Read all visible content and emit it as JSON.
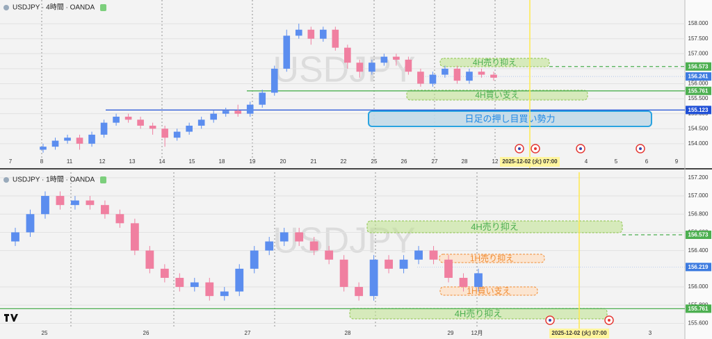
{
  "chart_data": [
    {
      "type": "candlestick",
      "title": "USDJPY · 4時間 · OANDA",
      "watermark": "USDJPY",
      "x_labels": [
        "7",
        "8",
        "11",
        "12",
        "13",
        "14",
        "15",
        "18",
        "19",
        "20",
        "21",
        "22",
        "25",
        "26",
        "27",
        "28",
        "12",
        "4",
        "5",
        "6",
        "9"
      ],
      "cursor_label": "2025-12-02 (火)   07:00",
      "ylim": [
        153.51,
        158.79
      ],
      "yticks": [
        {
          "value": 158,
          "label": "158.000"
        },
        {
          "value": 157.5,
          "label": "157.500"
        },
        {
          "value": 157,
          "label": "157.000"
        },
        {
          "value": 156.5,
          "label": "156.500"
        },
        {
          "value": 156,
          "label": "156.000"
        },
        {
          "value": 155.5,
          "label": "155.500"
        },
        {
          "value": 155,
          "label": "155.000"
        },
        {
          "value": 154.5,
          "label": "154.500"
        },
        {
          "value": 154,
          "label": "154.000"
        }
      ],
      "price_badges": [
        {
          "value": 156.573,
          "color": "#4caf50"
        },
        {
          "value": 156.241,
          "color": "#3d7be0"
        },
        {
          "value": 155.761,
          "color": "#4caf50"
        },
        {
          "value": 155.123,
          "color": "#1f4fd6"
        }
      ],
      "zones": [
        {
          "text": "4H売り抑え",
          "color": "green"
        },
        {
          "text": "4H買い支え",
          "color": "green"
        },
        {
          "text": "日足の押し目買い勢力",
          "color": "blue"
        }
      ],
      "up_color": "#5b8def",
      "down_color": "#f07fa0",
      "open": [
        153.8,
        153.9,
        154.1,
        154.2,
        154.0,
        154.3,
        154.7,
        154.9,
        154.8,
        154.6,
        154.5,
        154.2,
        154.4,
        154.6,
        154.8,
        155.0,
        155.1,
        155.0,
        155.3,
        155.7,
        156.5,
        157.6,
        157.8,
        157.5,
        157.8,
        157.2,
        156.7,
        156.4,
        156.7,
        156.9,
        156.8,
        156.4,
        156.0,
        156.3,
        156.5,
        156.1,
        156.4,
        156.3
      ],
      "high": [
        154.0,
        154.2,
        154.3,
        154.3,
        154.4,
        154.8,
        155.0,
        155.0,
        154.9,
        154.7,
        154.6,
        154.5,
        154.7,
        154.9,
        155.1,
        155.2,
        155.3,
        155.4,
        155.8,
        156.6,
        157.8,
        158.0,
        157.9,
        157.9,
        157.9,
        157.3,
        156.8,
        156.8,
        157.0,
        157.0,
        156.9,
        156.5,
        156.4,
        156.6,
        156.6,
        156.5,
        156.5,
        156.4
      ],
      "low": [
        153.7,
        153.8,
        154.0,
        153.8,
        153.9,
        154.2,
        154.6,
        154.7,
        154.5,
        154.3,
        153.9,
        154.1,
        154.3,
        154.5,
        154.7,
        154.9,
        154.9,
        154.9,
        155.2,
        155.6,
        156.4,
        157.5,
        157.3,
        157.4,
        157.1,
        156.5,
        156.2,
        156.3,
        156.6,
        156.6,
        156.3,
        155.9,
        155.9,
        156.2,
        156.0,
        156.0,
        156.2,
        156.1
      ],
      "close": [
        153.9,
        154.1,
        154.2,
        154.0,
        154.3,
        154.7,
        154.9,
        154.8,
        154.6,
        154.5,
        154.2,
        154.4,
        154.6,
        154.8,
        155.0,
        155.1,
        155.0,
        155.3,
        155.7,
        156.5,
        157.6,
        157.8,
        157.5,
        157.8,
        157.2,
        156.7,
        156.4,
        156.7,
        156.9,
        156.8,
        156.4,
        156.0,
        156.3,
        156.5,
        156.1,
        156.4,
        156.3,
        156.2
      ]
    },
    {
      "type": "candlestick",
      "title": "USDJPY · 1時間 · OANDA",
      "watermark": "USDJPY",
      "x_labels": [
        "25",
        "26",
        "27",
        "28",
        "29",
        "12月",
        "3"
      ],
      "cursor_label": "2025-12-02 (火)   07:00",
      "ylim": [
        155.55,
        157.26
      ],
      "yticks": [
        {
          "value": 157.2,
          "label": "157.200"
        },
        {
          "value": 157,
          "label": "157.000"
        },
        {
          "value": 156.8,
          "label": "156.800"
        },
        {
          "value": 156.6,
          "label": "156.600"
        },
        {
          "value": 156.4,
          "label": "156.400"
        },
        {
          "value": 156,
          "label": "156.000"
        },
        {
          "value": 155.8,
          "label": "155.800"
        },
        {
          "value": 155.6,
          "label": "155.600"
        }
      ],
      "price_badges": [
        {
          "value": 156.573,
          "color": "#4caf50"
        },
        {
          "value": 156.219,
          "color": "#3d7be0"
        },
        {
          "value": 155.761,
          "color": "#4caf50"
        }
      ],
      "zones": [
        {
          "text": "4H売り抑え",
          "color": "green"
        },
        {
          "text": "1H売り抑え",
          "color": "orange"
        },
        {
          "text": "1H買い支え",
          "color": "orange"
        },
        {
          "text": "4H売り抑え",
          "color": "green"
        }
      ],
      "up_color": "#5b8def",
      "down_color": "#f07fa0",
      "open": [
        156.5,
        156.6,
        156.8,
        157.0,
        156.9,
        156.95,
        156.9,
        156.8,
        156.7,
        156.4,
        156.2,
        156.1,
        156.0,
        156.05,
        155.9,
        155.95,
        156.2,
        156.4,
        156.5,
        156.6,
        156.5,
        156.4,
        156.3,
        156.0,
        155.9,
        156.3,
        156.2,
        156.3,
        156.4,
        156.3,
        156.1,
        156.0
      ],
      "high": [
        156.65,
        156.85,
        157.05,
        157.05,
        157.0,
        157.0,
        156.95,
        156.85,
        156.75,
        156.45,
        156.25,
        156.15,
        156.1,
        156.1,
        156.0,
        156.25,
        156.45,
        156.55,
        156.65,
        156.65,
        156.55,
        156.45,
        156.35,
        156.05,
        156.35,
        156.35,
        156.35,
        156.45,
        156.45,
        156.35,
        156.15,
        156.2
      ],
      "low": [
        156.45,
        156.55,
        156.75,
        156.85,
        156.85,
        156.85,
        156.75,
        156.65,
        156.35,
        156.15,
        156.05,
        155.95,
        155.95,
        155.85,
        155.85,
        155.9,
        156.15,
        156.35,
        156.45,
        156.45,
        156.35,
        156.25,
        155.95,
        155.85,
        155.85,
        156.15,
        156.15,
        156.25,
        156.25,
        156.05,
        155.95,
        155.95
      ],
      "close": [
        156.6,
        156.8,
        157.0,
        156.9,
        156.95,
        156.9,
        156.8,
        156.7,
        156.4,
        156.2,
        156.1,
        156.0,
        156.05,
        155.9,
        155.95,
        156.2,
        156.4,
        156.5,
        156.6,
        156.5,
        156.4,
        156.3,
        156.0,
        155.9,
        156.3,
        156.2,
        156.3,
        156.4,
        156.3,
        156.1,
        156.0,
        156.15
      ]
    }
  ]
}
